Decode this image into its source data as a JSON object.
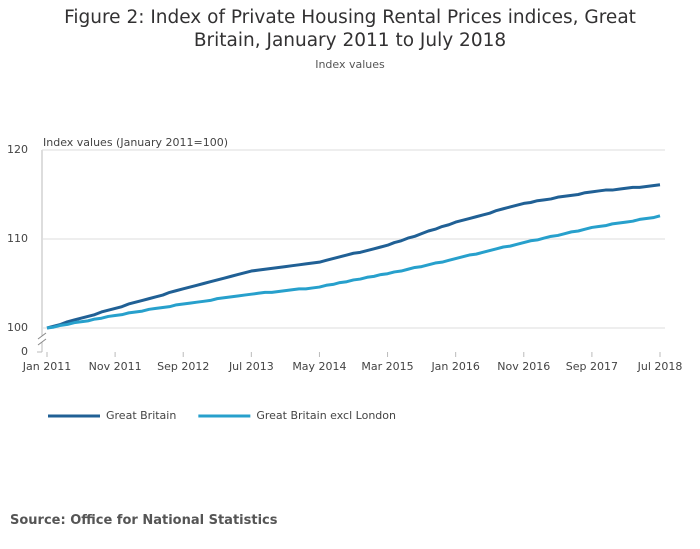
{
  "chart_data": {
    "type": "line",
    "title": "Figure 2: Index of Private Housing Rental Prices indices, Great Britain, January 2011 to July 2018",
    "subtitle": "Index values",
    "y_axis_label": "Index values (January 2011=100)",
    "source": "Source: Office for National Statistics",
    "categories": [
      "Jan 2011",
      null,
      null,
      null,
      null,
      null,
      null,
      null,
      null,
      null,
      "Nov 2011",
      null,
      null,
      null,
      null,
      null,
      null,
      null,
      null,
      null,
      "Sep 2012",
      null,
      null,
      null,
      null,
      null,
      null,
      null,
      null,
      null,
      "Jul 2013",
      null,
      null,
      null,
      null,
      null,
      null,
      null,
      null,
      null,
      "May 2014",
      null,
      null,
      null,
      null,
      null,
      null,
      null,
      null,
      null,
      "Mar 2015",
      null,
      null,
      null,
      null,
      null,
      null,
      null,
      null,
      null,
      "Jan 2016",
      null,
      null,
      null,
      null,
      null,
      null,
      null,
      null,
      null,
      "Nov 2016",
      null,
      null,
      null,
      null,
      null,
      null,
      null,
      null,
      null,
      "Sep 2017",
      null,
      null,
      null,
      null,
      null,
      null,
      null,
      null,
      null,
      "Jul 2018"
    ],
    "series": [
      {
        "name": "Great Britain",
        "color": "#206095",
        "values": [
          100,
          100.2,
          100.4,
          100.7,
          100.9,
          101.1,
          101.3,
          101.5,
          101.8,
          102.0,
          102.2,
          102.4,
          102.7,
          102.9,
          103.1,
          103.3,
          103.5,
          103.7,
          104.0,
          104.2,
          104.4,
          104.6,
          104.8,
          105.0,
          105.2,
          105.4,
          105.6,
          105.8,
          106.0,
          106.2,
          106.4,
          106.5,
          106.6,
          106.7,
          106.8,
          106.9,
          107.0,
          107.1,
          107.2,
          107.3,
          107.4,
          107.6,
          107.8,
          108.0,
          108.2,
          108.4,
          108.5,
          108.7,
          108.9,
          109.1,
          109.3,
          109.6,
          109.8,
          110.1,
          110.3,
          110.6,
          110.9,
          111.1,
          111.4,
          111.6,
          111.9,
          112.1,
          112.3,
          112.5,
          112.7,
          112.9,
          113.2,
          113.4,
          113.6,
          113.8,
          114.0,
          114.1,
          114.3,
          114.4,
          114.5,
          114.7,
          114.8,
          114.9,
          115.0,
          115.2,
          115.3,
          115.4,
          115.5,
          115.5,
          115.6,
          115.7,
          115.8,
          115.8,
          115.9,
          116.0,
          116.1
        ]
      },
      {
        "name": "Great Britain excl London",
        "color": "#27a0cc",
        "values": [
          100,
          100.1,
          100.3,
          100.4,
          100.6,
          100.7,
          100.8,
          101.0,
          101.1,
          101.3,
          101.4,
          101.5,
          101.7,
          101.8,
          101.9,
          102.1,
          102.2,
          102.3,
          102.4,
          102.6,
          102.7,
          102.8,
          102.9,
          103.0,
          103.1,
          103.3,
          103.4,
          103.5,
          103.6,
          103.7,
          103.8,
          103.9,
          104.0,
          104.0,
          104.1,
          104.2,
          104.3,
          104.4,
          104.4,
          104.5,
          104.6,
          104.8,
          104.9,
          105.1,
          105.2,
          105.4,
          105.5,
          105.7,
          105.8,
          106.0,
          106.1,
          106.3,
          106.4,
          106.6,
          106.8,
          106.9,
          107.1,
          107.3,
          107.4,
          107.6,
          107.8,
          108.0,
          108.2,
          108.3,
          108.5,
          108.7,
          108.9,
          109.1,
          109.2,
          109.4,
          109.6,
          109.8,
          109.9,
          110.1,
          110.3,
          110.4,
          110.6,
          110.8,
          110.9,
          111.1,
          111.3,
          111.4,
          111.5,
          111.7,
          111.8,
          111.9,
          112.0,
          112.2,
          112.3,
          112.4,
          112.6
        ]
      }
    ],
    "ylim": [
      100,
      120
    ],
    "yticks": [
      0,
      100,
      110,
      120
    ],
    "axis_break": true,
    "grid": true,
    "legend": "bottom"
  }
}
